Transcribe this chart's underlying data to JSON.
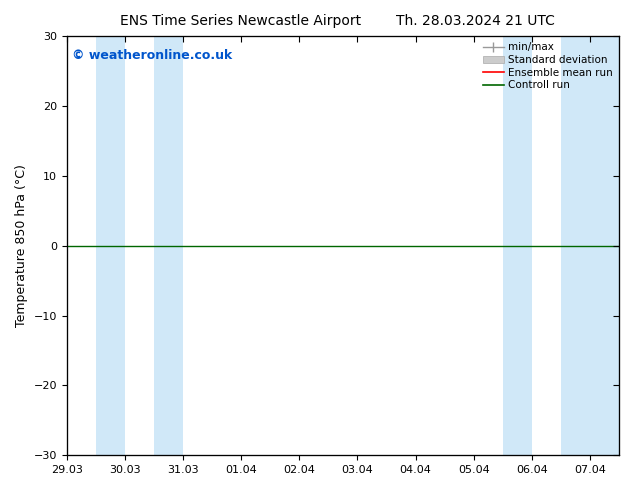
{
  "title_left": "ENS Time Series Newcastle Airport",
  "title_right": "Th. 28.03.2024 21 UTC",
  "ylabel": "Temperature 850 hPa (°C)",
  "ylim": [
    -30,
    30
  ],
  "yticks": [
    -30,
    -20,
    -10,
    0,
    10,
    20,
    30
  ],
  "watermark": "© weatheronline.co.uk",
  "watermark_color": "#0055cc",
  "background_color": "#ffffff",
  "plot_bg_color": "#ffffff",
  "shading_color": "#d0e8f8",
  "x_tick_labels": [
    "29.03",
    "30.03",
    "31.03",
    "01.04",
    "02.04",
    "03.04",
    "04.04",
    "05.04",
    "06.04",
    "07.04"
  ],
  "x_tick_positions": [
    0,
    1,
    2,
    3,
    4,
    5,
    6,
    7,
    8,
    9
  ],
  "shaded_bands": [
    [
      0.5,
      1.0
    ],
    [
      1.5,
      2.0
    ],
    [
      7.5,
      8.0
    ],
    [
      8.5,
      9.5
    ]
  ],
  "zero_line_y": 0,
  "zero_line_color": "#006600",
  "title_fontsize": 10,
  "axis_label_fontsize": 9,
  "tick_fontsize": 8,
  "watermark_fontsize": 9
}
